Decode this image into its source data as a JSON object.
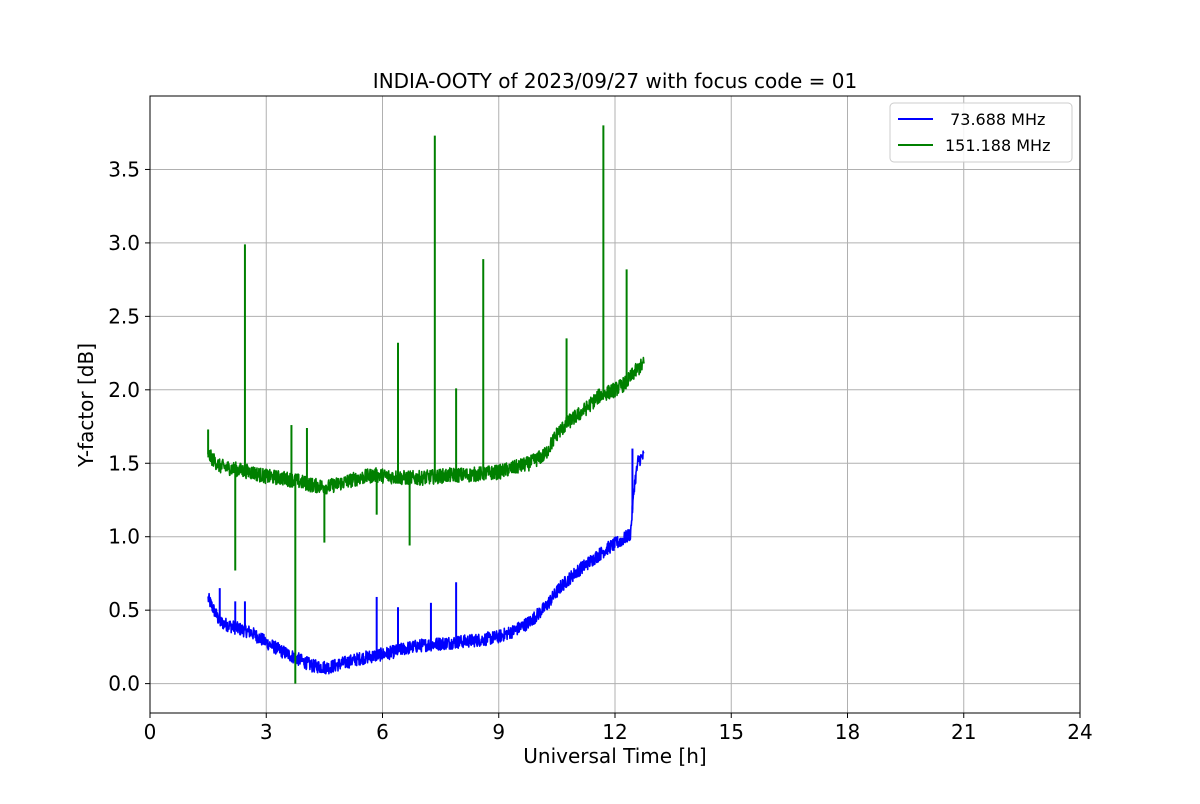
{
  "chart_data": {
    "type": "line",
    "title": "INDIA-OOTY of 2023/09/27 with focus code = 01",
    "xlabel": "Universal Time [h]",
    "ylabel": "Y-factor [dB]",
    "xlim": [
      0,
      24
    ],
    "ylim": [
      -0.2,
      4.0
    ],
    "xticks": [
      0,
      3,
      6,
      9,
      12,
      15,
      18,
      21,
      24
    ],
    "xtick_labels": [
      "0",
      "3",
      "6",
      "9",
      "12",
      "15",
      "18",
      "21",
      "24"
    ],
    "yticks": [
      0.0,
      0.5,
      1.0,
      1.5,
      2.0,
      2.5,
      3.0,
      3.5
    ],
    "ytick_labels": [
      "0.0",
      "0.5",
      "1.0",
      "1.5",
      "2.0",
      "2.5",
      "3.0",
      "3.5"
    ],
    "grid": true,
    "legend_position": "top-right",
    "series": [
      {
        "name": " 73.688 MHz",
        "color": "#0000ff",
        "x": [
          1.5,
          1.8,
          2.2,
          2.6,
          3.0,
          3.4,
          3.8,
          4.2,
          4.6,
          5.0,
          5.4,
          5.8,
          6.2,
          6.6,
          7.0,
          7.4,
          7.8,
          8.2,
          8.6,
          9.0,
          9.4,
          9.8,
          10.2,
          10.6,
          11.0,
          11.4,
          11.8,
          12.2,
          12.3,
          12.4,
          12.5,
          12.6,
          12.75
        ],
        "y": [
          0.58,
          0.42,
          0.38,
          0.35,
          0.28,
          0.22,
          0.17,
          0.12,
          0.11,
          0.14,
          0.17,
          0.19,
          0.21,
          0.24,
          0.26,
          0.27,
          0.28,
          0.29,
          0.3,
          0.32,
          0.36,
          0.42,
          0.52,
          0.66,
          0.76,
          0.84,
          0.92,
          0.98,
          1.0,
          1.02,
          1.35,
          1.52,
          1.55
        ],
        "spikes": [
          [
            1.8,
            0.65
          ],
          [
            2.2,
            0.56
          ],
          [
            2.45,
            0.56
          ],
          [
            5.85,
            0.59
          ],
          [
            6.4,
            0.52
          ],
          [
            7.25,
            0.55
          ],
          [
            7.9,
            0.69
          ],
          [
            12.45,
            1.6
          ]
        ]
      },
      {
        "name": "151.188 MHz",
        "color": "#008000",
        "x": [
          1.5,
          1.8,
          2.2,
          2.6,
          3.0,
          3.4,
          3.8,
          4.2,
          4.6,
          5.0,
          5.4,
          5.8,
          6.2,
          6.6,
          7.0,
          7.4,
          7.8,
          8.2,
          8.6,
          9.0,
          9.4,
          9.8,
          10.2,
          10.5,
          10.8,
          11.2,
          11.6,
          12.0,
          12.3,
          12.5,
          12.75
        ],
        "y": [
          1.56,
          1.48,
          1.46,
          1.44,
          1.41,
          1.4,
          1.38,
          1.35,
          1.34,
          1.37,
          1.4,
          1.42,
          1.41,
          1.4,
          1.4,
          1.41,
          1.42,
          1.42,
          1.43,
          1.44,
          1.47,
          1.5,
          1.56,
          1.7,
          1.78,
          1.86,
          1.96,
          2.0,
          2.05,
          2.12,
          2.18
        ],
        "spikes": [
          [
            1.5,
            1.73
          ],
          [
            2.45,
            2.99
          ],
          [
            3.65,
            1.76
          ],
          [
            4.05,
            1.74
          ],
          [
            6.4,
            2.32
          ],
          [
            7.35,
            3.73
          ],
          [
            7.9,
            2.01
          ],
          [
            8.6,
            2.89
          ],
          [
            10.75,
            2.35
          ],
          [
            11.7,
            3.8
          ],
          [
            12.3,
            2.82
          ]
        ],
        "dips": [
          [
            2.2,
            0.77
          ],
          [
            3.75,
            0.0
          ],
          [
            4.5,
            0.96
          ],
          [
            5.85,
            1.15
          ],
          [
            6.7,
            0.94
          ]
        ]
      }
    ]
  }
}
